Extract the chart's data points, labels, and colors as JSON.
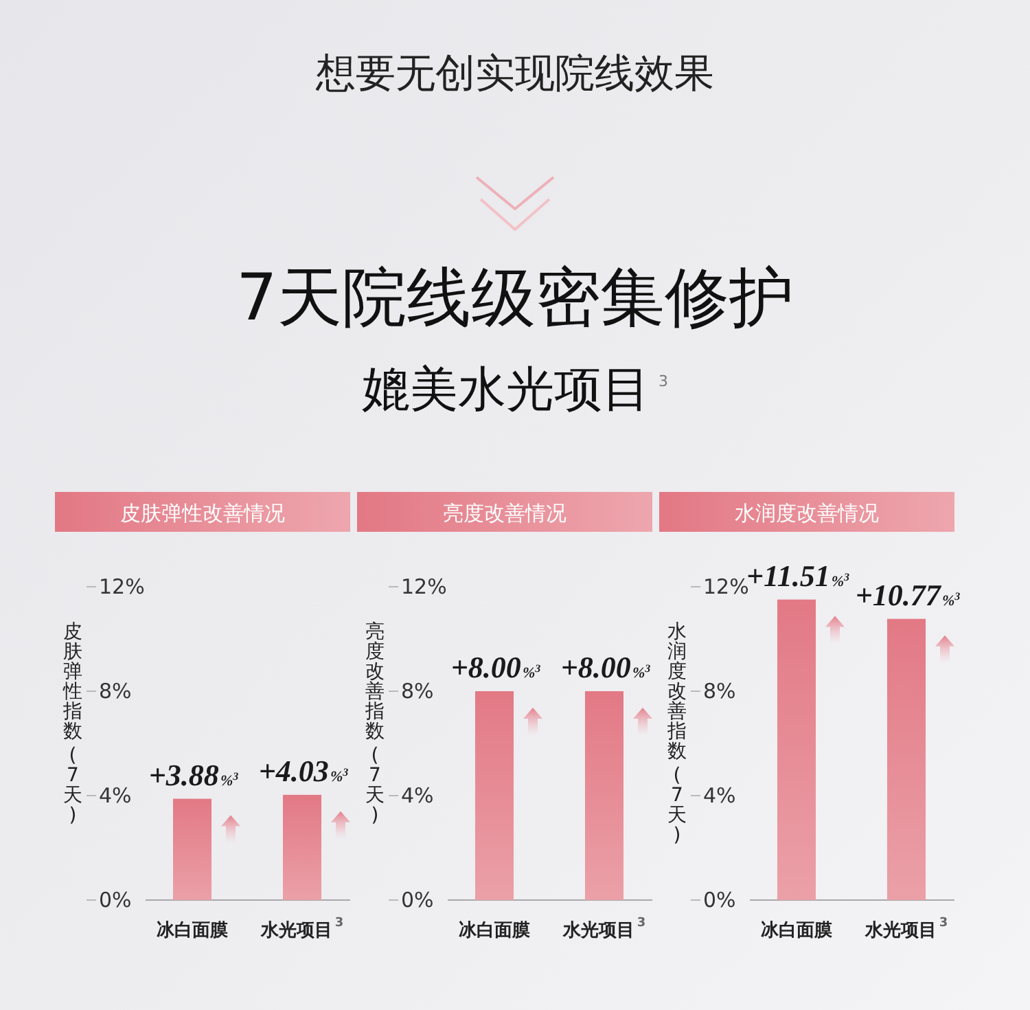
{
  "chart_data": [
    {
      "type": "other",
      "title": "7天院线级密集修护",
      "subtitle": "媲美水光项目$^{3}$",
      "annotations": [
        "想要无创实现院线效果"
      ]
    },
    {
      "type": "bar",
      "title": "皮肤弹性改善情况",
      "ylabel": "皮肤弹性指数 (7天)",
      "categories": [
        "冰白面膜",
        "水光项目$^{3}$"
      ],
      "values": [
        3.88,
        4.03
      ],
      "value_labels": [
        "+3.88%$^{3}$",
        "+4.03%$^{3}$"
      ],
      "color": "#e68b95",
      "ylim": [
        0,
        12
      ],
      "yticks": [
        {
          "value": 0,
          "label": "0%"
        },
        {
          "value": 4,
          "label": "4%"
        },
        {
          "value": 8,
          "label": "8%"
        },
        {
          "value": 12,
          "label": "12%"
        }
      ]
    },
    {
      "type": "bar",
      "title": "亮度改善情况",
      "ylabel": "亮度改善指数 (7天)",
      "categories": [
        "冰白面膜",
        "水光项目$^{3}$"
      ],
      "values": [
        8.0,
        8.0
      ],
      "value_labels": [
        "+8.00%$^{3}$",
        "+8.00%$^{3}$"
      ],
      "color": "#e68b95",
      "ylim": [
        0,
        12
      ],
      "yticks": [
        {
          "value": 0,
          "label": "0%"
        },
        {
          "value": 4,
          "label": "4%"
        },
        {
          "value": 8,
          "label": "8%"
        },
        {
          "value": 12,
          "label": "12%"
        }
      ]
    },
    {
      "type": "bar",
      "title": "水润度改善情况",
      "ylabel": "水润度改善指数 (7天)",
      "categories": [
        "冰白面膜",
        "水光项目$^{3}$"
      ],
      "values": [
        11.51,
        10.77
      ],
      "value_labels": [
        "+11.51%$^{3}$",
        "+10.77%$^{3}$"
      ],
      "color": "#e68b95",
      "ylim": [
        0,
        12
      ],
      "yticks": [
        {
          "value": 0,
          "label": "0%"
        },
        {
          "value": 4,
          "label": "4%"
        },
        {
          "value": 8,
          "label": "8%"
        },
        {
          "value": 12,
          "label": "12%"
        }
      ]
    }
  ]
}
